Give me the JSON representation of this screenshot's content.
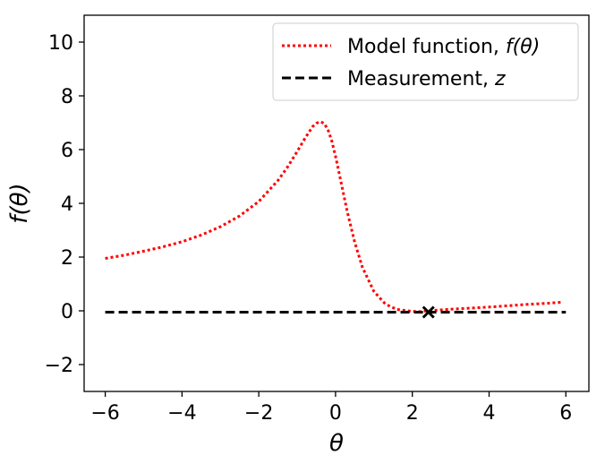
{
  "chart_data": {
    "type": "line",
    "xlabel": "θ",
    "ylabel": "f(θ)",
    "xlim": [
      -6.55,
      6.6
    ],
    "ylim": [
      -3,
      11
    ],
    "xticks": [
      -6,
      -4,
      -2,
      0,
      2,
      4,
      6
    ],
    "yticks": [
      -2,
      0,
      2,
      4,
      6,
      8,
      10
    ],
    "xtick_labels": [
      "−6",
      "−4",
      "−2",
      "0",
      "2",
      "4",
      "6"
    ],
    "ytick_labels": [
      "−2",
      "0",
      "2",
      "4",
      "6",
      "8",
      "10"
    ],
    "grid": false,
    "legend_position": "top-right",
    "legend": {
      "model_prefix": "Model function, ",
      "model_math": "f(θ)",
      "measurement_prefix": "Measurement, ",
      "measurement_math": "z"
    },
    "series": [
      {
        "name": "Model function, f(θ)",
        "style": "dotted",
        "color": "#ff0000",
        "x": [
          -6,
          -5.5,
          -5,
          -4.5,
          -4,
          -3.5,
          -3,
          -2.5,
          -2,
          -1.5,
          -1.25,
          -1,
          -0.8,
          -0.6,
          -0.5,
          -0.4,
          -0.3,
          -0.2,
          -0.1,
          0,
          0.1,
          0.2,
          0.3,
          0.5,
          0.7,
          1.0,
          1.3,
          1.6,
          2.0,
          2.2,
          2.4,
          2.6,
          3.0,
          3.5,
          4.0,
          4.5,
          5.0,
          5.5,
          5.9
        ],
        "y": [
          1.95,
          2.07,
          2.22,
          2.38,
          2.57,
          2.82,
          3.13,
          3.53,
          4.07,
          4.85,
          5.35,
          5.93,
          6.41,
          6.85,
          6.98,
          7.04,
          6.98,
          6.75,
          6.33,
          5.75,
          5.08,
          4.4,
          3.72,
          2.55,
          1.62,
          0.72,
          0.25,
          0.05,
          -0.02,
          -0.03,
          0.0,
          0.02,
          0.06,
          0.1,
          0.14,
          0.19,
          0.24,
          0.28,
          0.32
        ]
      },
      {
        "name": "Measurement, z",
        "style": "dashed",
        "color": "#000000",
        "x": [
          -6,
          6
        ],
        "y": [
          -0.05,
          -0.05
        ]
      }
    ],
    "markers": [
      {
        "x": 2.42,
        "y": -0.05,
        "symbol": "x",
        "color": "#000000"
      }
    ]
  }
}
